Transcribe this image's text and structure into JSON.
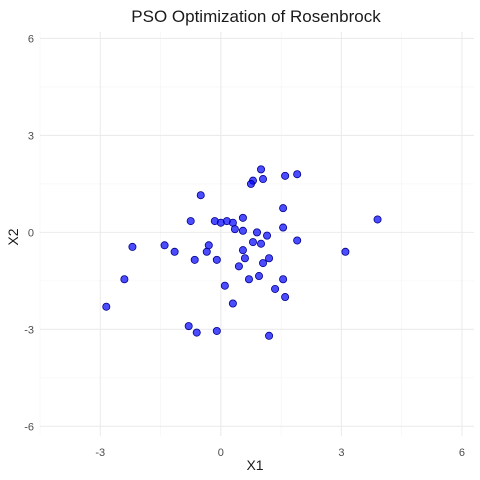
{
  "chart_data": {
    "type": "scatter",
    "title": "PSO Optimization of Rosenbrock",
    "xlabel": "X1",
    "ylabel": "X2",
    "xlim": [
      -4.5,
      6.3
    ],
    "ylim": [
      -6.3,
      6.2
    ],
    "x_ticks": [
      -3,
      0,
      3,
      6
    ],
    "y_ticks": [
      -6,
      -3,
      0,
      3,
      6
    ],
    "grid": true,
    "legend": "none",
    "point_color": "#0000ff",
    "point_opacity": 0.7,
    "point_stroke": "#00008b",
    "points": [
      {
        "x": 1.0,
        "y": 1.95
      },
      {
        "x": 1.9,
        "y": 1.8
      },
      {
        "x": 1.6,
        "y": 1.75
      },
      {
        "x": 0.8,
        "y": 1.6
      },
      {
        "x": 1.05,
        "y": 1.65
      },
      {
        "x": 0.75,
        "y": 1.5
      },
      {
        "x": -0.5,
        "y": 1.15
      },
      {
        "x": 1.55,
        "y": 0.75
      },
      {
        "x": 3.9,
        "y": 0.4
      },
      {
        "x": 0.55,
        "y": 0.45
      },
      {
        "x": -0.75,
        "y": 0.35
      },
      {
        "x": -0.15,
        "y": 0.35
      },
      {
        "x": 0.0,
        "y": 0.3
      },
      {
        "x": 0.15,
        "y": 0.35
      },
      {
        "x": 0.3,
        "y": 0.3
      },
      {
        "x": 1.55,
        "y": 0.15
      },
      {
        "x": 0.35,
        "y": 0.1
      },
      {
        "x": 0.55,
        "y": 0.05
      },
      {
        "x": 0.9,
        "y": 0.0
      },
      {
        "x": 1.15,
        "y": -0.1
      },
      {
        "x": 0.8,
        "y": -0.3
      },
      {
        "x": 1.0,
        "y": -0.35
      },
      {
        "x": 1.9,
        "y": -0.25
      },
      {
        "x": -0.3,
        "y": -0.4
      },
      {
        "x": -1.4,
        "y": -0.4
      },
      {
        "x": -2.2,
        "y": -0.45
      },
      {
        "x": -1.15,
        "y": -0.6
      },
      {
        "x": 0.55,
        "y": -0.55
      },
      {
        "x": -0.35,
        "y": -0.6
      },
      {
        "x": 3.1,
        "y": -0.6
      },
      {
        "x": 1.05,
        "y": -0.95
      },
      {
        "x": 0.6,
        "y": -0.8
      },
      {
        "x": -0.1,
        "y": -0.85
      },
      {
        "x": 0.45,
        "y": -1.05
      },
      {
        "x": -0.65,
        "y": -0.85
      },
      {
        "x": 1.2,
        "y": -0.8
      },
      {
        "x": 0.7,
        "y": -1.45
      },
      {
        "x": 0.95,
        "y": -1.35
      },
      {
        "x": 1.55,
        "y": -1.45
      },
      {
        "x": -2.4,
        "y": -1.45
      },
      {
        "x": 0.1,
        "y": -1.65
      },
      {
        "x": 1.35,
        "y": -1.75
      },
      {
        "x": 1.6,
        "y": -2.0
      },
      {
        "x": 0.3,
        "y": -2.2
      },
      {
        "x": -2.85,
        "y": -2.3
      },
      {
        "x": -0.8,
        "y": -2.9
      },
      {
        "x": -0.6,
        "y": -3.1
      },
      {
        "x": -0.1,
        "y": -3.05
      },
      {
        "x": 1.2,
        "y": -3.2
      }
    ]
  }
}
